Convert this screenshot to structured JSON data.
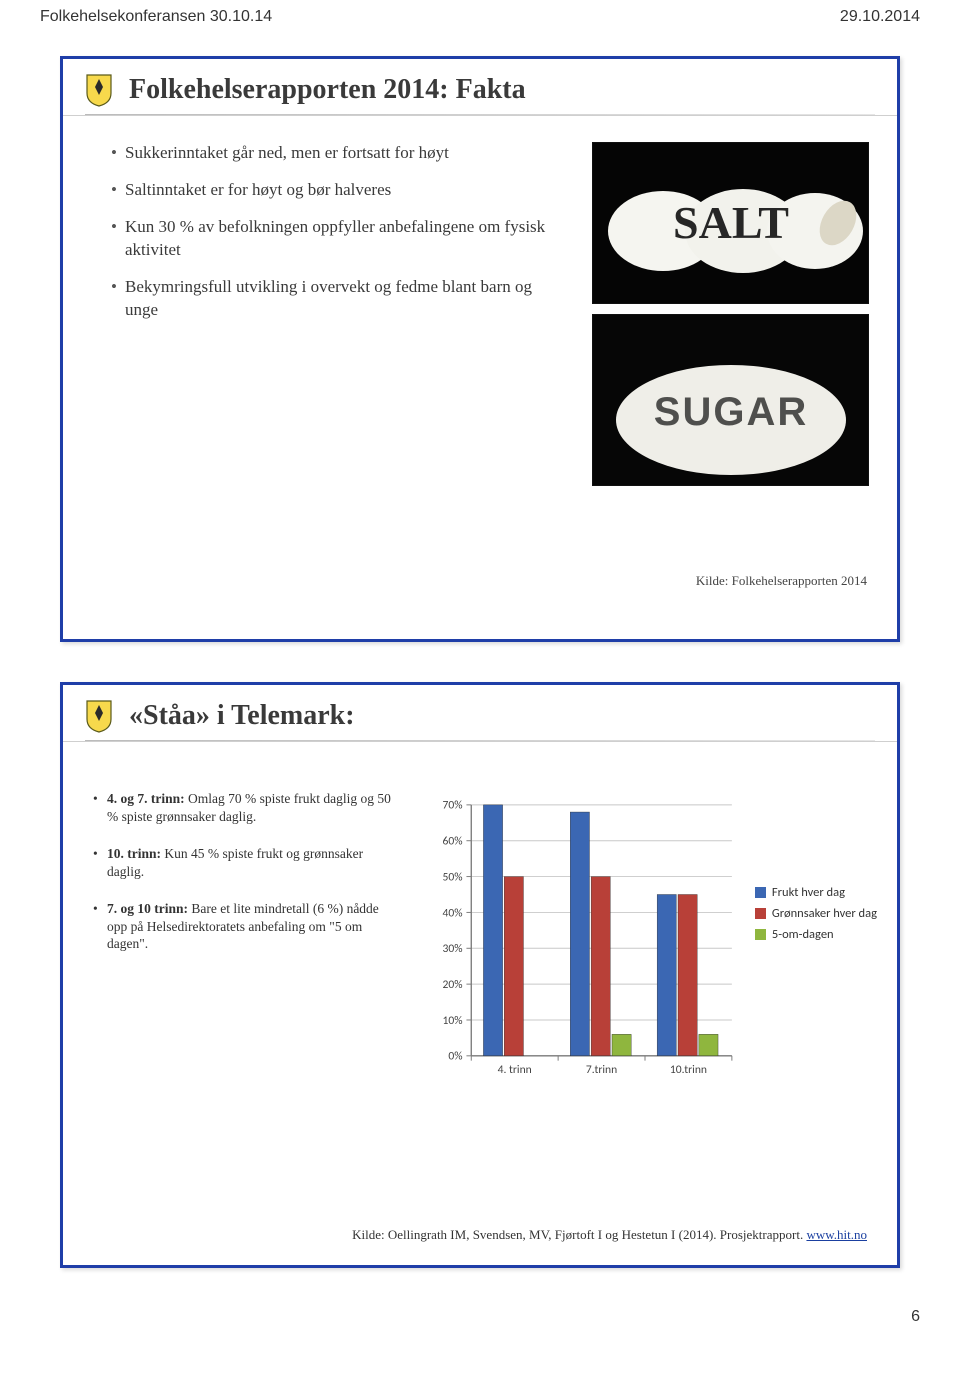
{
  "header": {
    "left": "Folkehelsekonferansen 30.10.14",
    "right": "29.10.2014"
  },
  "page_number": "6",
  "slide1": {
    "title": "Folkehelserapporten 2014: Fakta",
    "bullets": [
      "Sukkerinntaket går ned, men er fortsatt for høyt",
      "Saltinntaket er for høyt og bør halveres",
      "Kun 30 % av befolkningen oppfyller anbefalingene om fysisk aktivitet",
      "Bekymringsfull utvikling i overvekt og fedme blant barn og unge"
    ],
    "photo_labels": {
      "salt": "SALT",
      "sugar": "SUGAR"
    },
    "kilde": "Kilde: Folkehelserapporten 2014"
  },
  "slide2": {
    "title": "«Ståa» i Telemark:",
    "bullets": [
      {
        "lead": "4. og 7. trinn:",
        "rest": " Omlag 70 % spiste frukt daglig og 50 % spiste grønnsaker daglig."
      },
      {
        "lead": "10. trinn:",
        "rest": " Kun 45 % spiste frukt og grønnsaker daglig."
      },
      {
        "lead": "7. og 10 trinn:",
        "rest": " Bare et lite mindretall (6 %) nådde opp på Helsedirektoratets anbefaling om \"5 om dagen\"."
      }
    ],
    "chart": {
      "type": "bar",
      "categories": [
        "4. trinn",
        "7.trinn",
        "10.trinn"
      ],
      "series": [
        {
          "name": "Frukt hver dag",
          "color": "#3b67b3",
          "values": [
            70,
            68,
            45
          ]
        },
        {
          "name": "Grønnsaker hver dag",
          "color": "#b84038",
          "values": [
            50,
            50,
            45
          ]
        },
        {
          "name": "5-om-dagen",
          "color": "#8fb63e",
          "values": [
            0,
            6,
            6
          ]
        }
      ],
      "ylim": [
        0,
        70
      ],
      "ytick_step": 10,
      "axis_color": "#7a7a7a",
      "grid_color": "#c8c8c8",
      "label_fontsize": 12,
      "tick_fontsize": 12,
      "bar_group_width": 0.72
    },
    "kilde_prefix": "Kilde: Oellingrath IM, Svendsen, MV, Fjørtoft I og Hestetun I (2014). Prosjektrapport. ",
    "kilde_link": "www.hit.no"
  }
}
